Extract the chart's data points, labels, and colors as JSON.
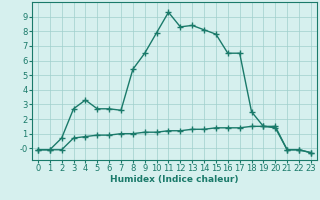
{
  "line1_x": [
    0,
    1,
    2,
    3,
    4,
    5,
    6,
    7,
    8,
    9,
    10,
    11,
    12,
    13,
    14,
    15,
    16,
    17,
    18,
    19,
    20,
    21,
    22,
    23
  ],
  "line1_y": [
    -0.1,
    -0.1,
    0.7,
    2.7,
    3.3,
    2.7,
    2.7,
    2.6,
    5.4,
    6.5,
    7.9,
    9.3,
    8.3,
    8.4,
    8.1,
    7.8,
    6.5,
    6.5,
    2.5,
    1.5,
    1.4,
    -0.1,
    -0.1,
    -0.3
  ],
  "line2_x": [
    0,
    1,
    2,
    3,
    4,
    5,
    6,
    7,
    8,
    9,
    10,
    11,
    12,
    13,
    14,
    15,
    16,
    17,
    18,
    19,
    20,
    21,
    22,
    23
  ],
  "line2_y": [
    -0.1,
    -0.1,
    -0.1,
    0.7,
    0.8,
    0.9,
    0.9,
    1.0,
    1.0,
    1.1,
    1.1,
    1.2,
    1.2,
    1.3,
    1.3,
    1.4,
    1.4,
    1.4,
    1.5,
    1.5,
    1.5,
    -0.1,
    -0.1,
    -0.3
  ],
  "line_color": "#1a7a6a",
  "bg_color": "#d6f0ee",
  "grid_color": "#a0d0cc",
  "xlabel": "Humidex (Indice chaleur)",
  "xlim": [
    -0.5,
    23.5
  ],
  "ylim": [
    -0.8,
    10.0
  ],
  "yticks": [
    0,
    1,
    2,
    3,
    4,
    5,
    6,
    7,
    8,
    9
  ],
  "ytick_labels": [
    "-0",
    "1",
    "2",
    "3",
    "4",
    "5",
    "6",
    "7",
    "8",
    "9"
  ],
  "xticks": [
    0,
    1,
    2,
    3,
    4,
    5,
    6,
    7,
    8,
    9,
    10,
    11,
    12,
    13,
    14,
    15,
    16,
    17,
    18,
    19,
    20,
    21,
    22,
    23
  ],
  "marker": "+",
  "marker_size": 4,
  "line_width": 1.0,
  "font_size": 6,
  "xlabel_fontsize": 6.5
}
